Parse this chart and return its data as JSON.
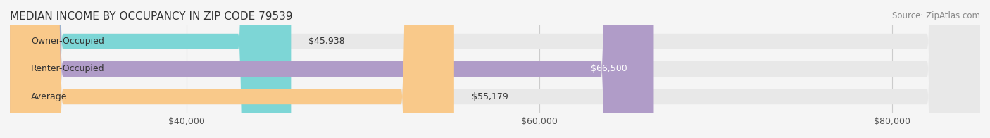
{
  "title": "MEDIAN INCOME BY OCCUPANCY IN ZIP CODE 79539",
  "source": "Source: ZipAtlas.com",
  "categories": [
    "Owner-Occupied",
    "Renter-Occupied",
    "Average"
  ],
  "values": [
    45938,
    66500,
    55179
  ],
  "bar_colors": [
    "#7dd6d6",
    "#b09cc8",
    "#f9c98a"
  ],
  "bar_edge_colors": [
    "#7dd6d6",
    "#b09cc8",
    "#f9c98a"
  ],
  "label_colors": [
    "#333333",
    "#ffffff",
    "#333333"
  ],
  "value_labels": [
    "$45,938",
    "$66,500",
    "$55,179"
  ],
  "xlim": [
    30000,
    85000
  ],
  "xticks": [
    40000,
    60000,
    80000
  ],
  "xticklabels": [
    "$40,000",
    "$60,000",
    "$80,000"
  ],
  "background_color": "#f5f5f5",
  "bar_background_color": "#e8e8e8",
  "title_fontsize": 11,
  "source_fontsize": 8.5,
  "label_fontsize": 9,
  "value_fontsize": 9,
  "tick_fontsize": 9,
  "bar_height": 0.55
}
